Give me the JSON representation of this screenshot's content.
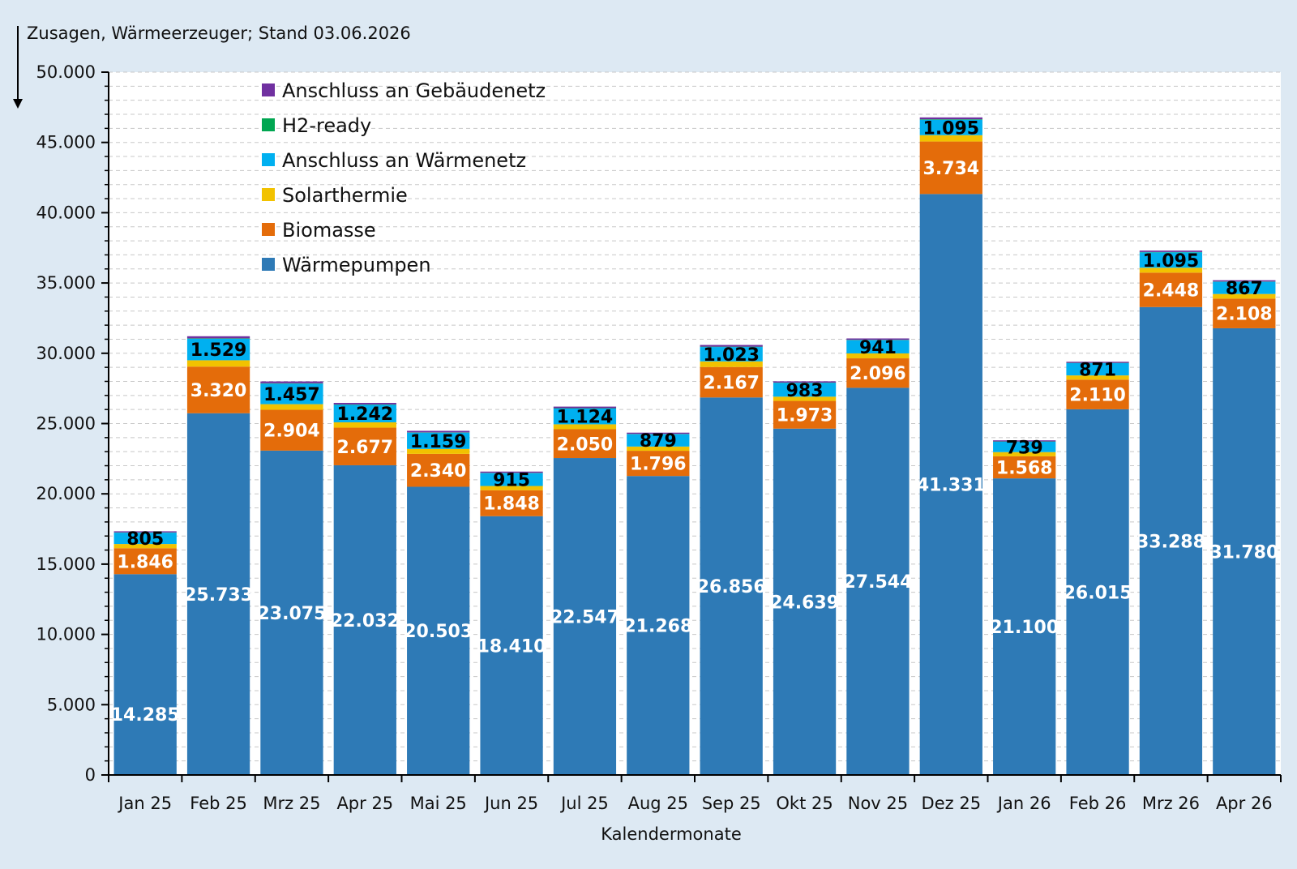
{
  "chart_data": {
    "type": "bar",
    "stacked": true,
    "title": "Zusagen, Wärmeerzeuger; Stand 03.06.2026",
    "xlabel": "Kalendermonate",
    "ylabel": "",
    "ylim": [
      0,
      50000
    ],
    "ytick_step": 5000,
    "yticks": [
      "0",
      "5.000",
      "10.000",
      "15.000",
      "20.000",
      "25.000",
      "30.000",
      "35.000",
      "40.000",
      "45.000",
      "50.000"
    ],
    "grid": true,
    "legend_position": "top-left",
    "categories": [
      "Jan 25",
      "Feb 25",
      "Mrz 25",
      "Apr 25",
      "Mai 25",
      "Jun 25",
      "Jul 25",
      "Aug 25",
      "Sep 25",
      "Okt 25",
      "Nov 25",
      "Dez 25",
      "Jan 26",
      "Feb 26",
      "Mrz 26",
      "Apr 26"
    ],
    "series": [
      {
        "name": "Wärmepumpen",
        "color": "#2e7ab6",
        "values": [
          14285,
          25733,
          23075,
          22032,
          20503,
          18410,
          22547,
          21268,
          26856,
          24639,
          27544,
          41331,
          21100,
          26015,
          33288,
          31780
        ],
        "labels": [
          "14.285",
          "25.733",
          "23.075",
          "22.032",
          "20.503",
          "18.410",
          "22.547",
          "21.268",
          "26.856",
          "24.639",
          "27.544",
          "41.331",
          "21.100",
          "26.015",
          "33.288",
          "31.780"
        ]
      },
      {
        "name": "Biomasse",
        "color": "#e46c0a",
        "values": [
          1846,
          3320,
          2904,
          2677,
          2340,
          1848,
          2050,
          1796,
          2167,
          1973,
          2096,
          3734,
          1568,
          2110,
          2448,
          2108
        ],
        "labels": [
          "1.846",
          "3.320",
          "2.904",
          "2.677",
          "2.340",
          "1.848",
          "2.050",
          "1.796",
          "2.167",
          "1.973",
          "2.096",
          "3.734",
          "1.568",
          "2.110",
          "2.448",
          "2.108"
        ]
      },
      {
        "name": "Solarthermie",
        "color": "#f2c200",
        "values": [
          300,
          450,
          400,
          380,
          350,
          300,
          350,
          300,
          400,
          300,
          350,
          450,
          300,
          300,
          350,
          330
        ]
      },
      {
        "name": "Anschluss an Wärmenetz",
        "color": "#00b0f0",
        "values": [
          805,
          1529,
          1457,
          1242,
          1159,
          915,
          1124,
          879,
          1023,
          983,
          941,
          1095,
          739,
          871,
          1095,
          867
        ],
        "labels": [
          "805",
          "1.529",
          "1.457",
          "1.242",
          "1.159",
          "915",
          "1.124",
          "879",
          "1.023",
          "983",
          "941",
          "1.095",
          "739",
          "871",
          "1.095",
          "867"
        ]
      },
      {
        "name": "H2-ready",
        "color": "#00a651",
        "values": [
          20,
          30,
          30,
          30,
          20,
          20,
          25,
          20,
          25,
          20,
          25,
          40,
          20,
          20,
          25,
          20
        ]
      },
      {
        "name": "Anschluss an Gebäudenetz",
        "color": "#7030a0",
        "values": [
          80,
          150,
          130,
          110,
          110,
          90,
          110,
          90,
          120,
          90,
          100,
          130,
          80,
          80,
          100,
          90
        ]
      }
    ]
  }
}
